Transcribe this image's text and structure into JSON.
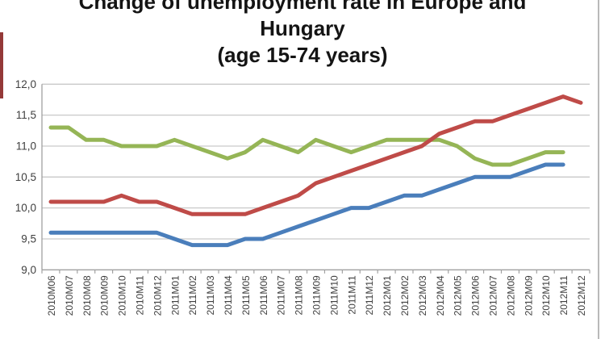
{
  "page": {
    "right_border_color": "#b9b9b9",
    "left_edge_artifact_color": "#943938",
    "background_color": "#ffffff"
  },
  "chart_data": {
    "type": "line",
    "title_lines": [
      "Change of unemployment rate in Europe and",
      "Hungary",
      "(age 15-74 years)"
    ],
    "xlabel": "",
    "ylabel": "",
    "legend": "none",
    "grid": true,
    "ylim": [
      9.0,
      12.0
    ],
    "ytick_step": 0.5,
    "ytick_labels": [
      "9,0",
      "9,5",
      "10,0",
      "10,5",
      "11,0",
      "11,5",
      "12,0"
    ],
    "grid_color": "#c9c9c9",
    "axis_color": "#a0a0a0",
    "tick_label_color": "#3f3f3f",
    "categories": [
      "2010M06",
      "2010M07",
      "2010M08",
      "2010M09",
      "2010M10",
      "2010M11",
      "2010M12",
      "2011M01",
      "2011M02",
      "2011M03",
      "2011M04",
      "2011M05",
      "2011M06",
      "2011M07",
      "2011M08",
      "2011M09",
      "2011M10",
      "2011M11",
      "2011M12",
      "2012M01",
      "2012M02",
      "2012M03",
      "2012M04",
      "2012M05",
      "2012M06",
      "2012M07",
      "2012M08",
      "2012M09",
      "2012M10",
      "2012M11",
      "2012M12"
    ],
    "series": [
      {
        "id": "green-line",
        "color": "#95b556",
        "values": [
          11.3,
          11.3,
          11.1,
          11.1,
          11.0,
          11.0,
          11.0,
          11.1,
          11.0,
          10.9,
          10.8,
          10.9,
          11.1,
          11.0,
          10.9,
          11.1,
          11.0,
          10.9,
          11.0,
          11.1,
          11.1,
          11.1,
          11.1,
          11.0,
          10.8,
          10.7,
          10.7,
          10.8,
          10.9,
          10.9,
          null
        ]
      },
      {
        "id": "blue-line",
        "color": "#4a7ebb",
        "values": [
          9.6,
          9.6,
          9.6,
          9.6,
          9.6,
          9.6,
          9.6,
          9.5,
          9.4,
          9.4,
          9.4,
          9.5,
          9.5,
          9.6,
          9.7,
          9.8,
          9.9,
          10.0,
          10.0,
          10.1,
          10.2,
          10.2,
          10.3,
          10.4,
          10.5,
          10.5,
          10.5,
          10.6,
          10.7,
          10.7,
          null
        ]
      },
      {
        "id": "red-line",
        "color": "#bf4b48",
        "values": [
          10.1,
          10.1,
          10.1,
          10.1,
          10.2,
          10.1,
          10.1,
          10.0,
          9.9,
          9.9,
          9.9,
          9.9,
          10.0,
          10.1,
          10.2,
          10.4,
          10.5,
          10.6,
          10.7,
          10.8,
          10.9,
          11.0,
          11.2,
          11.3,
          11.4,
          11.4,
          11.5,
          11.6,
          11.7,
          11.8,
          11.7
        ]
      }
    ]
  }
}
